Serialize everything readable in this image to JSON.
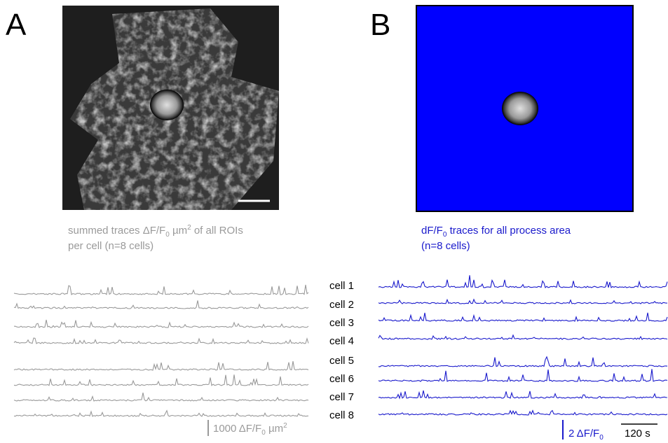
{
  "panel_a": {
    "label": "A",
    "caption": {
      "line1_start": "summed traces ΔF/F",
      "line1_sub": "0",
      "line1_mid": " µm",
      "line1_sup": "2",
      "line1_end": " of all ROIs",
      "line2": "per cell (n=8 cells)"
    },
    "scale_label": {
      "start": "1000 ΔF/F",
      "sub": "0",
      "mid": " µm",
      "sup": "2"
    }
  },
  "panel_b": {
    "label": "B",
    "caption": {
      "line1_start": "dF/F",
      "line1_sub": "0",
      "line1_end": "  traces for all process area",
      "line2": "(n=8 cells)"
    },
    "scale_label": {
      "start": "2 ΔF/F",
      "sub": "0"
    },
    "time_label": "120 s"
  },
  "cells": [
    "cell 1",
    "cell 2",
    "cell 3",
    "cell 4",
    "cell 5",
    "cell 6",
    "cell 7",
    "cell 8"
  ]
}
